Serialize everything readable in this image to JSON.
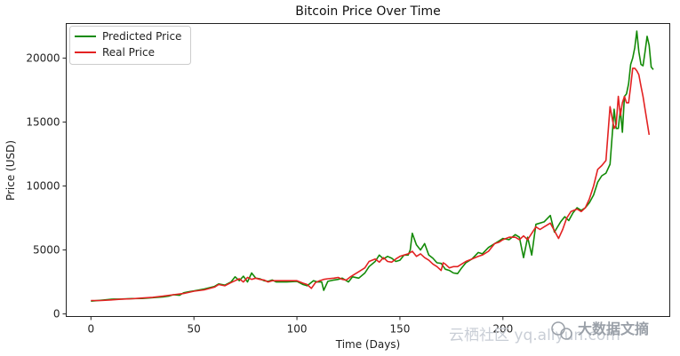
{
  "chart_data": {
    "type": "line",
    "title": "Bitcoin Price Over Time",
    "xlabel": "Time (Days)",
    "ylabel": "Price (USD)",
    "xlim": [
      -12,
      281
    ],
    "ylim": [
      -200,
      22700
    ],
    "xticks": [
      0,
      50,
      100,
      150,
      200
    ],
    "yticks": [
      0,
      5000,
      10000,
      15000,
      20000
    ],
    "xtick_labels": [
      "0",
      "50",
      "100",
      "150",
      "200"
    ],
    "ytick_labels": [
      "0",
      "5000",
      "10000",
      "15000",
      "20000"
    ],
    "grid": false,
    "legend_position": "top-left",
    "series": [
      {
        "name": "Predicted Price",
        "color": "#138a07",
        "points": [
          [
            0,
            1000
          ],
          [
            5,
            1070
          ],
          [
            10,
            1150
          ],
          [
            15,
            1170
          ],
          [
            20,
            1200
          ],
          [
            25,
            1210
          ],
          [
            30,
            1270
          ],
          [
            35,
            1330
          ],
          [
            38,
            1400
          ],
          [
            40,
            1500
          ],
          [
            43,
            1460
          ],
          [
            45,
            1650
          ],
          [
            48,
            1750
          ],
          [
            50,
            1800
          ],
          [
            55,
            1950
          ],
          [
            60,
            2150
          ],
          [
            62,
            2350
          ],
          [
            65,
            2250
          ],
          [
            68,
            2500
          ],
          [
            70,
            2900
          ],
          [
            72,
            2600
          ],
          [
            74,
            2950
          ],
          [
            76,
            2500
          ],
          [
            78,
            3200
          ],
          [
            80,
            2800
          ],
          [
            82,
            2750
          ],
          [
            84,
            2600
          ],
          [
            86,
            2550
          ],
          [
            88,
            2650
          ],
          [
            90,
            2500
          ],
          [
            95,
            2500
          ],
          [
            100,
            2550
          ],
          [
            103,
            2300
          ],
          [
            105,
            2200
          ],
          [
            108,
            2600
          ],
          [
            110,
            2500
          ],
          [
            112,
            2500
          ],
          [
            113,
            1850
          ],
          [
            115,
            2550
          ],
          [
            118,
            2650
          ],
          [
            120,
            2700
          ],
          [
            122,
            2800
          ],
          [
            125,
            2500
          ],
          [
            127,
            2900
          ],
          [
            130,
            2800
          ],
          [
            133,
            3200
          ],
          [
            135,
            3700
          ],
          [
            138,
            4100
          ],
          [
            140,
            4600
          ],
          [
            142,
            4300
          ],
          [
            144,
            4500
          ],
          [
            146,
            4350
          ],
          [
            148,
            4100
          ],
          [
            150,
            4200
          ],
          [
            152,
            4600
          ],
          [
            154,
            4600
          ],
          [
            155,
            5000
          ],
          [
            156,
            6300
          ],
          [
            158,
            5400
          ],
          [
            160,
            5000
          ],
          [
            162,
            5500
          ],
          [
            164,
            4600
          ],
          [
            166,
            4350
          ],
          [
            168,
            4000
          ],
          [
            170,
            3950
          ],
          [
            172,
            3500
          ],
          [
            174,
            3400
          ],
          [
            176,
            3200
          ],
          [
            178,
            3150
          ],
          [
            180,
            3600
          ],
          [
            182,
            4000
          ],
          [
            185,
            4300
          ],
          [
            188,
            4800
          ],
          [
            190,
            4700
          ],
          [
            193,
            5200
          ],
          [
            196,
            5500
          ],
          [
            198,
            5700
          ],
          [
            200,
            5900
          ],
          [
            203,
            5800
          ],
          [
            206,
            6200
          ],
          [
            208,
            6000
          ],
          [
            210,
            4400
          ],
          [
            212,
            6000
          ],
          [
            214,
            4600
          ],
          [
            216,
            7000
          ],
          [
            220,
            7200
          ],
          [
            223,
            7700
          ],
          [
            225,
            6400
          ],
          [
            228,
            7200
          ],
          [
            230,
            7600
          ],
          [
            232,
            7300
          ],
          [
            234,
            7900
          ],
          [
            236,
            8300
          ],
          [
            238,
            8100
          ],
          [
            240,
            8300
          ],
          [
            242,
            8700
          ],
          [
            244,
            9300
          ],
          [
            246,
            10300
          ],
          [
            248,
            10800
          ],
          [
            250,
            11000
          ],
          [
            252,
            11700
          ],
          [
            254,
            16000
          ],
          [
            255,
            14500
          ],
          [
            256,
            14500
          ],
          [
            257,
            16000
          ],
          [
            258,
            14200
          ],
          [
            259,
            17000
          ],
          [
            260,
            17200
          ],
          [
            261,
            18000
          ],
          [
            262,
            19500
          ],
          [
            263,
            20000
          ],
          [
            264,
            20800
          ],
          [
            265,
            22100
          ],
          [
            266,
            20500
          ],
          [
            267,
            19500
          ],
          [
            268,
            19400
          ],
          [
            269,
            20500
          ],
          [
            270,
            21700
          ],
          [
            271,
            21000
          ],
          [
            272,
            19300
          ],
          [
            273,
            19100
          ]
        ]
      },
      {
        "name": "Real Price",
        "color": "#e32222",
        "points": [
          [
            0,
            1050
          ],
          [
            5,
            1050
          ],
          [
            10,
            1100
          ],
          [
            15,
            1160
          ],
          [
            20,
            1190
          ],
          [
            25,
            1240
          ],
          [
            30,
            1300
          ],
          [
            35,
            1390
          ],
          [
            40,
            1500
          ],
          [
            45,
            1600
          ],
          [
            50,
            1780
          ],
          [
            55,
            1880
          ],
          [
            60,
            2100
          ],
          [
            62,
            2300
          ],
          [
            65,
            2200
          ],
          [
            68,
            2450
          ],
          [
            70,
            2600
          ],
          [
            72,
            2750
          ],
          [
            74,
            2500
          ],
          [
            76,
            2850
          ],
          [
            78,
            2700
          ],
          [
            80,
            2800
          ],
          [
            82,
            2700
          ],
          [
            84,
            2650
          ],
          [
            86,
            2500
          ],
          [
            88,
            2600
          ],
          [
            90,
            2600
          ],
          [
            95,
            2600
          ],
          [
            100,
            2600
          ],
          [
            103,
            2400
          ],
          [
            105,
            2300
          ],
          [
            107,
            2000
          ],
          [
            109,
            2450
          ],
          [
            111,
            2600
          ],
          [
            113,
            2700
          ],
          [
            115,
            2750
          ],
          [
            118,
            2800
          ],
          [
            120,
            2850
          ],
          [
            122,
            2700
          ],
          [
            124,
            2650
          ],
          [
            126,
            2900
          ],
          [
            128,
            3100
          ],
          [
            130,
            3300
          ],
          [
            133,
            3600
          ],
          [
            135,
            4100
          ],
          [
            138,
            4300
          ],
          [
            140,
            4050
          ],
          [
            142,
            4400
          ],
          [
            144,
            4100
          ],
          [
            146,
            4050
          ],
          [
            148,
            4300
          ],
          [
            150,
            4500
          ],
          [
            152,
            4600
          ],
          [
            154,
            4700
          ],
          [
            156,
            4900
          ],
          [
            158,
            4500
          ],
          [
            160,
            4700
          ],
          [
            162,
            4400
          ],
          [
            164,
            4200
          ],
          [
            166,
            3900
          ],
          [
            168,
            3700
          ],
          [
            170,
            3400
          ],
          [
            171,
            4000
          ],
          [
            172,
            3900
          ],
          [
            174,
            3600
          ],
          [
            176,
            3700
          ],
          [
            178,
            3700
          ],
          [
            180,
            3900
          ],
          [
            182,
            4100
          ],
          [
            185,
            4300
          ],
          [
            188,
            4500
          ],
          [
            190,
            4600
          ],
          [
            193,
            4900
          ],
          [
            196,
            5500
          ],
          [
            198,
            5600
          ],
          [
            200,
            5800
          ],
          [
            203,
            6000
          ],
          [
            206,
            6000
          ],
          [
            208,
            5800
          ],
          [
            210,
            6100
          ],
          [
            212,
            5800
          ],
          [
            214,
            6300
          ],
          [
            216,
            6800
          ],
          [
            218,
            6600
          ],
          [
            220,
            6800
          ],
          [
            223,
            7100
          ],
          [
            225,
            6500
          ],
          [
            227,
            5900
          ],
          [
            229,
            6600
          ],
          [
            231,
            7500
          ],
          [
            233,
            8000
          ],
          [
            236,
            8200
          ],
          [
            238,
            8000
          ],
          [
            240,
            8300
          ],
          [
            242,
            9000
          ],
          [
            244,
            10000
          ],
          [
            246,
            11300
          ],
          [
            248,
            11600
          ],
          [
            250,
            12000
          ],
          [
            252,
            16200
          ],
          [
            254,
            14500
          ],
          [
            255,
            14800
          ],
          [
            256,
            17000
          ],
          [
            257,
            15500
          ],
          [
            258,
            16500
          ],
          [
            259,
            17000
          ],
          [
            260,
            16500
          ],
          [
            261,
            16500
          ],
          [
            262,
            17800
          ],
          [
            263,
            19200
          ],
          [
            264,
            19200
          ],
          [
            265,
            19000
          ],
          [
            266,
            18700
          ],
          [
            267,
            17800
          ],
          [
            268,
            17000
          ],
          [
            269,
            16000
          ],
          [
            270,
            15000
          ],
          [
            271,
            14000
          ]
        ]
      }
    ]
  },
  "watermark": {
    "left_text": "云栖社区 yq.aliyun.com",
    "right_text": "大数据文摘"
  }
}
